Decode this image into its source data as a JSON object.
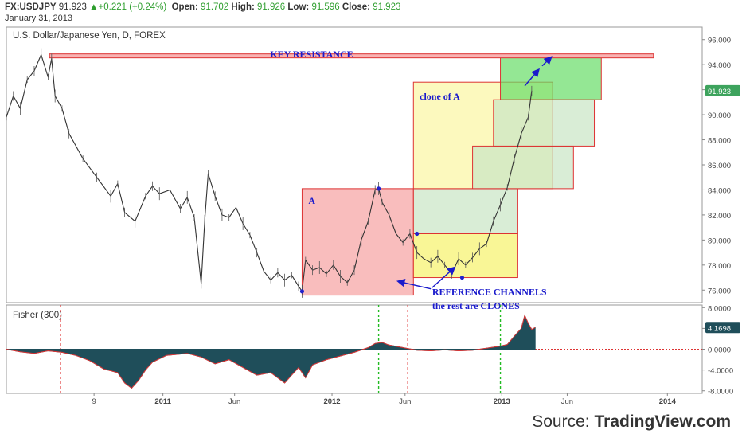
{
  "header": {
    "symbol": "FX:USDJPY",
    "last": "91.923",
    "change": "+0.221 (+0.24%)",
    "open_label": "Open:",
    "open": "91.702",
    "high_label": "High:",
    "high": "91.926",
    "low_label": "Low:",
    "low": "91.596",
    "close_label": "Close:",
    "close": "91.923",
    "date": "January 31, 2013"
  },
  "credit": {
    "prefix": "Source:",
    "brand": "TradingView.com"
  },
  "chart_data": [
    {
      "type": "line",
      "title": "U.S. Dollar/Japanese Yen, D, FOREX",
      "ylim": [
        75,
        97
      ],
      "y_ticks": [
        "76.000",
        "78.000",
        "80.000",
        "82.000",
        "84.000",
        "86.000",
        "88.000",
        "90.000",
        "92.000",
        "94.000",
        "96.000"
      ],
      "x_ticks": [
        "9",
        "2011",
        "Jun",
        "2012",
        "Jun",
        "2013",
        "Jun",
        "2014"
      ],
      "price_label": "91.923",
      "price_value": 91.923,
      "series": [
        {
          "values": [
            [
              0.0,
              89.8
            ],
            [
              0.01,
              91.5
            ],
            [
              0.02,
              90.5
            ],
            [
              0.03,
              92.8
            ],
            [
              0.04,
              93.5
            ],
            [
              0.05,
              94.8
            ],
            [
              0.06,
              93.0
            ],
            [
              0.065,
              94.5
            ],
            [
              0.07,
              91.5
            ],
            [
              0.08,
              90.5
            ],
            [
              0.09,
              88.5
            ],
            [
              0.1,
              87.5
            ],
            [
              0.11,
              86.5
            ],
            [
              0.13,
              85.0
            ],
            [
              0.15,
              83.5
            ],
            [
              0.16,
              84.5
            ],
            [
              0.17,
              82.2
            ],
            [
              0.185,
              81.5
            ],
            [
              0.2,
              83.5
            ],
            [
              0.21,
              84.3
            ],
            [
              0.22,
              83.7
            ],
            [
              0.235,
              84.0
            ],
            [
              0.25,
              82.5
            ],
            [
              0.26,
              83.4
            ],
            [
              0.27,
              81.8
            ],
            [
              0.28,
              76.5
            ],
            [
              0.285,
              81.5
            ],
            [
              0.29,
              85.3
            ],
            [
              0.3,
              83.5
            ],
            [
              0.31,
              82.0
            ],
            [
              0.32,
              81.8
            ],
            [
              0.33,
              82.6
            ],
            [
              0.34,
              81.3
            ],
            [
              0.35,
              80.4
            ],
            [
              0.36,
              79.0
            ],
            [
              0.37,
              77.5
            ],
            [
              0.38,
              76.8
            ],
            [
              0.39,
              77.4
            ],
            [
              0.4,
              76.8
            ],
            [
              0.41,
              77.2
            ],
            [
              0.42,
              76.3
            ],
            [
              0.425,
              75.9
            ],
            [
              0.43,
              78.4
            ],
            [
              0.44,
              77.6
            ],
            [
              0.45,
              77.8
            ],
            [
              0.46,
              77.3
            ],
            [
              0.47,
              78.0
            ],
            [
              0.48,
              77.1
            ],
            [
              0.49,
              76.6
            ],
            [
              0.5,
              77.6
            ],
            [
              0.51,
              80.0
            ],
            [
              0.52,
              81.5
            ],
            [
              0.53,
              84.0
            ],
            [
              0.535,
              84.1
            ],
            [
              0.54,
              83.0
            ],
            [
              0.55,
              82.0
            ],
            [
              0.56,
              80.5
            ],
            [
              0.57,
              79.8
            ],
            [
              0.58,
              80.5
            ],
            [
              0.59,
              79.0
            ],
            [
              0.6,
              78.5
            ],
            [
              0.61,
              78.2
            ],
            [
              0.62,
              78.7
            ],
            [
              0.63,
              78.0
            ],
            [
              0.64,
              77.3
            ],
            [
              0.65,
              78.5
            ],
            [
              0.66,
              78.0
            ],
            [
              0.67,
              78.6
            ],
            [
              0.68,
              79.3
            ],
            [
              0.69,
              79.7
            ],
            [
              0.7,
              81.5
            ],
            [
              0.71,
              82.8
            ],
            [
              0.72,
              84.2
            ],
            [
              0.73,
              86.5
            ],
            [
              0.74,
              88.5
            ],
            [
              0.75,
              89.8
            ],
            [
              0.755,
              91.923
            ]
          ]
        }
      ],
      "pivots": [
        [
          0.425,
          75.9
        ],
        [
          0.535,
          84.1
        ],
        [
          0.59,
          80.5
        ],
        [
          0.655,
          77.0
        ]
      ],
      "annotations": {
        "key_resistance": "KEY RESISTANCE",
        "box_a": "A",
        "clone_of_a": "clone of A",
        "reference_line1": "REFERENCE CHANNELS",
        "reference_line2": "the rest are CLONES"
      },
      "boxes": [
        {
          "name": "A",
          "x0": 0.425,
          "x1": 0.585,
          "y0": 75.6,
          "y1": 84.1,
          "color": "#f7a1a1"
        },
        {
          "name": "clone-yellow-small",
          "x0": 0.585,
          "x1": 0.735,
          "y0": 77.0,
          "y1": 80.5,
          "color": "#f7f26a"
        },
        {
          "name": "clone-green-1",
          "x0": 0.585,
          "x1": 0.735,
          "y0": 80.5,
          "y1": 84.1,
          "color": "#c9e6c5"
        },
        {
          "name": "clone-of-a",
          "x0": 0.585,
          "x1": 0.785,
          "y0": 84.1,
          "y1": 92.6,
          "color": "#fbf7a3"
        },
        {
          "name": "clone-green-2",
          "x0": 0.67,
          "x1": 0.815,
          "y0": 84.1,
          "y1": 87.5,
          "color": "#c9e6c5"
        },
        {
          "name": "clone-green-3",
          "x0": 0.7,
          "x1": 0.845,
          "y0": 87.5,
          "y1": 91.2,
          "color": "#c9e6c5"
        },
        {
          "name": "clone-green-4",
          "x0": 0.71,
          "x1": 0.855,
          "y0": 91.2,
          "y1": 94.6,
          "color": "#66dd66"
        }
      ],
      "resistance_level": 94.7
    },
    {
      "type": "area",
      "title": "Fisher (300)",
      "ylim": [
        -8.5,
        8.5
      ],
      "y_ticks": [
        "8.0000",
        "4.0000",
        "0.0000",
        "-4.0000",
        "-8.0000"
      ],
      "value_label": "4.1698",
      "value": 4.1698,
      "values": [
        [
          0.0,
          0
        ],
        [
          0.02,
          -0.5
        ],
        [
          0.04,
          -0.8
        ],
        [
          0.06,
          -0.3
        ],
        [
          0.08,
          -0.6
        ],
        [
          0.1,
          -1.2
        ],
        [
          0.12,
          -2.2
        ],
        [
          0.14,
          -3.8
        ],
        [
          0.16,
          -4.5
        ],
        [
          0.17,
          -6.5
        ],
        [
          0.18,
          -7.5
        ],
        [
          0.19,
          -6.0
        ],
        [
          0.2,
          -4.0
        ],
        [
          0.21,
          -2.5
        ],
        [
          0.23,
          -1.2
        ],
        [
          0.26,
          -0.8
        ],
        [
          0.28,
          -1.5
        ],
        [
          0.3,
          -2.8
        ],
        [
          0.32,
          -2.0
        ],
        [
          0.34,
          -3.5
        ],
        [
          0.36,
          -5.0
        ],
        [
          0.38,
          -4.5
        ],
        [
          0.4,
          -6.5
        ],
        [
          0.41,
          -5.0
        ],
        [
          0.42,
          -3.5
        ],
        [
          0.43,
          -5.5
        ],
        [
          0.44,
          -3.0
        ],
        [
          0.46,
          -2.0
        ],
        [
          0.48,
          -1.3
        ],
        [
          0.5,
          -0.6
        ],
        [
          0.52,
          0.3
        ],
        [
          0.53,
          1.1
        ],
        [
          0.54,
          1.3
        ],
        [
          0.55,
          0.8
        ],
        [
          0.57,
          0.3
        ],
        [
          0.59,
          -0.2
        ],
        [
          0.61,
          -0.3
        ],
        [
          0.63,
          -0.1
        ],
        [
          0.65,
          -0.3
        ],
        [
          0.67,
          -0.2
        ],
        [
          0.69,
          0.2
        ],
        [
          0.71,
          0.6
        ],
        [
          0.72,
          0.9
        ],
        [
          0.73,
          2.5
        ],
        [
          0.74,
          4.0
        ],
        [
          0.745,
          6.5
        ],
        [
          0.75,
          5.0
        ],
        [
          0.755,
          3.8
        ],
        [
          0.76,
          4.17
        ]
      ],
      "markers": [
        {
          "x": 0.078,
          "color": "#dd2222"
        },
        {
          "x": 0.535,
          "color": "#22bb22"
        },
        {
          "x": 0.577,
          "color": "#dd2222"
        },
        {
          "x": 0.71,
          "color": "#22bb22"
        }
      ],
      "zero_line": 0
    }
  ]
}
